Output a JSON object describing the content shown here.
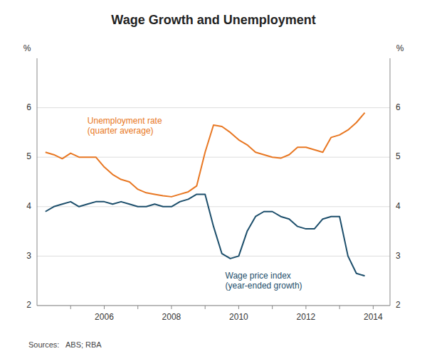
{
  "chart_data": {
    "type": "line",
    "title": "Wage Growth and Unemployment",
    "y_label": "%",
    "y2_label": "%",
    "source": "Sources:   ABS; RBA",
    "ylim": [
      2,
      7
    ],
    "yticks": [
      2,
      3,
      4,
      5,
      6
    ],
    "y2lim": [
      2,
      7
    ],
    "y2ticks": [
      2,
      3,
      4,
      5,
      6
    ],
    "xlim": [
      2004.0,
      2014.5
    ],
    "xticks": [
      {
        "value": 2005,
        "label": null
      },
      2006,
      {
        "value": 2007,
        "label": null
      },
      2008,
      {
        "value": 2009,
        "label": null
      },
      2010,
      {
        "value": 2011,
        "label": null
      },
      2012,
      {
        "value": 2013,
        "label": null
      },
      2014
    ],
    "grid": true,
    "x": [
      2004.25,
      2004.5,
      2004.75,
      2005.0,
      2005.25,
      2005.5,
      2005.75,
      2006.0,
      2006.25,
      2006.5,
      2006.75,
      2007.0,
      2007.25,
      2007.5,
      2007.75,
      2008.0,
      2008.25,
      2008.5,
      2008.75,
      2009.0,
      2009.25,
      2009.5,
      2009.75,
      2010.0,
      2010.25,
      2010.5,
      2010.75,
      2011.0,
      2011.25,
      2011.5,
      2011.75,
      2012.0,
      2012.25,
      2012.5,
      2012.75,
      2013.0,
      2013.25,
      2013.5,
      2013.75
    ],
    "series": [
      {
        "color": "#E87722",
        "values": [
          5.1,
          5.05,
          4.97,
          5.08,
          5.0,
          5.0,
          5.0,
          4.8,
          4.65,
          4.55,
          4.5,
          4.35,
          4.28,
          4.25,
          4.22,
          4.2,
          4.25,
          4.3,
          4.42,
          5.1,
          5.65,
          5.62,
          5.5,
          5.35,
          5.25,
          5.1,
          5.05,
          5.0,
          4.98,
          5.05,
          5.2,
          5.2,
          5.15,
          5.1,
          5.4,
          5.45,
          5.55,
          5.7,
          5.9
        ]
      },
      {
        "color": "#1C4E6B",
        "values": [
          3.9,
          4.0,
          4.05,
          4.1,
          4.0,
          4.05,
          4.1,
          4.1,
          4.05,
          4.1,
          4.05,
          4.0,
          4.0,
          4.05,
          4.0,
          4.0,
          4.1,
          4.15,
          4.25,
          4.25,
          3.6,
          3.05,
          2.95,
          3.0,
          3.5,
          3.8,
          3.9,
          3.9,
          3.8,
          3.75,
          3.6,
          3.55,
          3.55,
          3.75,
          3.8,
          3.8,
          3.0,
          2.65,
          2.6
        ]
      }
    ],
    "annotations": [
      {
        "text": "Unemployment rate\n(quarter average)",
        "x": 2005.5,
        "y": 5.85,
        "color": "#E87722"
      },
      {
        "text": "Wage price index\n(year-ended growth)",
        "x": 2009.6,
        "y": 2.72,
        "color": "#1C4E6B"
      }
    ]
  }
}
